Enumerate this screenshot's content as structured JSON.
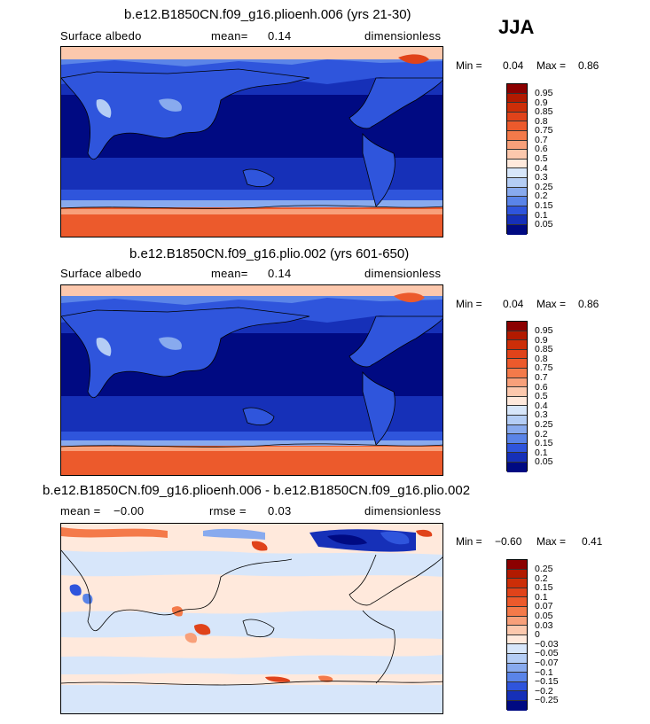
{
  "season_label": "JJA",
  "panels": [
    {
      "title": "b.e12.B1850CN.f09_g16.plioenh.006 (yrs 21-30)",
      "left_label": "Surface albedo",
      "stat1": "mean=",
      "stat1_value": "0.14",
      "stat2": "",
      "stat2_value": "",
      "units": "dimensionless",
      "min_label": "Min =",
      "min_value": "0.04",
      "max_label": "Max =",
      "max_value": "0.86"
    },
    {
      "title": "b.e12.B1850CN.f09_g16.plio.002 (yrs 601-650)",
      "left_label": "Surface albedo",
      "stat1": "mean=",
      "stat1_value": "0.14",
      "stat2": "",
      "stat2_value": "",
      "units": "dimensionless",
      "min_label": "Min =",
      "min_value": "0.04",
      "max_label": "Max =",
      "max_value": "0.86"
    },
    {
      "title": "b.e12.B1850CN.f09_g16.plioenh.006 - b.e12.B1850CN.f09_g16.plio.002",
      "left_label": "mean =",
      "stat1": "−0.00",
      "stat1_value": "",
      "stat2": "rmse =",
      "stat2_value": "0.03",
      "units": "dimensionless",
      "min_label": "Min =",
      "min_value": "−0.60",
      "max_label": "Max =",
      "max_value": "0.41"
    }
  ],
  "chart_data": [
    {
      "type": "heatmap",
      "title": "b.e12.B1850CN.f09_g16.plioenh.006 (yrs 21-30)",
      "variable": "Surface albedo",
      "units": "dimensionless",
      "mean": 0.14,
      "min": 0.04,
      "max": 0.86,
      "colorbar_levels": [
        0.95,
        0.9,
        0.85,
        0.8,
        0.75,
        0.7,
        0.6,
        0.5,
        0.4,
        0.3,
        0.25,
        0.2,
        0.15,
        0.1,
        0.05
      ],
      "colorbar_colors": [
        "#8b0000",
        "#b21a00",
        "#cc2e08",
        "#e0431a",
        "#ec5a2c",
        "#f47a4a",
        "#f8a07a",
        "#fcc8ad",
        "#ffe9dc",
        "#d7e6fa",
        "#b4cdf5",
        "#88aaee",
        "#5a84e8",
        "#2f55dc",
        "#1630b8",
        "#000a82"
      ]
    },
    {
      "type": "heatmap",
      "title": "b.e12.B1850CN.f09_g16.plio.002 (yrs 601-650)",
      "variable": "Surface albedo",
      "units": "dimensionless",
      "mean": 0.14,
      "min": 0.04,
      "max": 0.86,
      "colorbar_levels": [
        0.95,
        0.9,
        0.85,
        0.8,
        0.75,
        0.7,
        0.6,
        0.5,
        0.4,
        0.3,
        0.25,
        0.2,
        0.15,
        0.1,
        0.05
      ],
      "colorbar_colors": [
        "#8b0000",
        "#b21a00",
        "#cc2e08",
        "#e0431a",
        "#ec5a2c",
        "#f47a4a",
        "#f8a07a",
        "#fcc8ad",
        "#ffe9dc",
        "#d7e6fa",
        "#b4cdf5",
        "#88aaee",
        "#5a84e8",
        "#2f55dc",
        "#1630b8",
        "#000a82"
      ]
    },
    {
      "type": "heatmap",
      "title": "b.e12.B1850CN.f09_g16.plioenh.006 - b.e12.B1850CN.f09_g16.plio.002",
      "units": "dimensionless",
      "mean": -0.0,
      "rmse": 0.03,
      "min": -0.6,
      "max": 0.41,
      "colorbar_levels": [
        "0.25",
        "0.2",
        "0.15",
        "0.1",
        "0.07",
        "0.05",
        "0.03",
        "0",
        "−0.03",
        "−0.05",
        "−0.07",
        "−0.1",
        "−0.15",
        "−0.2",
        "−0.25"
      ],
      "colorbar_colors": [
        "#8b0000",
        "#b21a00",
        "#cc2e08",
        "#e0431a",
        "#ec5a2c",
        "#f47a4a",
        "#f8a07a",
        "#fcc8ad",
        "#ffe9dc",
        "#d7e6fa",
        "#b4cdf5",
        "#88aaee",
        "#5a84e8",
        "#2f55dc",
        "#1630b8",
        "#000a82"
      ]
    }
  ]
}
